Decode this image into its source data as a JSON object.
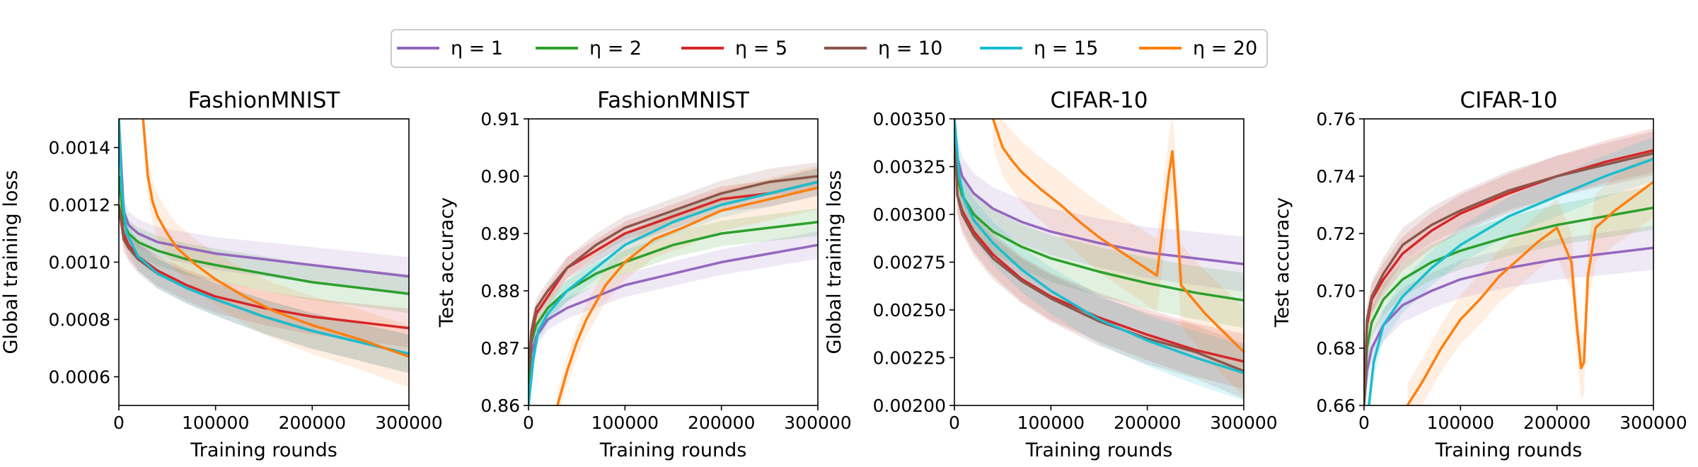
{
  "legend": {
    "entries": [
      {
        "label": "η = 1",
        "color": "#9467bd"
      },
      {
        "label": "η = 2",
        "color": "#2ca02c"
      },
      {
        "label": "η = 5",
        "color": "#d62728"
      },
      {
        "label": "η = 10",
        "color": "#8c564b"
      },
      {
        "label": "η = 15",
        "color": "#17becf"
      },
      {
        "label": "η = 20",
        "color": "#ff7f0e"
      }
    ]
  },
  "chart_data": [
    {
      "type": "line",
      "title": "FashionMNIST",
      "xlabel": "Training rounds",
      "ylabel": "Global training loss",
      "xlim": [
        0,
        300000
      ],
      "ylim": [
        0.0005,
        0.0015
      ],
      "xticks": [
        0,
        100000,
        200000,
        300000
      ],
      "xtick_labels": [
        "0",
        "100000",
        "200000",
        "300000"
      ],
      "yticks": [
        0.0006,
        0.0008,
        0.001,
        0.0012,
        0.0014
      ],
      "ytick_labels": [
        "0.0006",
        "0.0008",
        "0.0010",
        "0.0012",
        "0.0014"
      ],
      "series": [
        {
          "name": "η = 1",
          "x": [
            0,
            5000,
            10000,
            20000,
            40000,
            70000,
            100000,
            150000,
            200000,
            250000,
            300000
          ],
          "y": [
            0.0015,
            0.00118,
            0.00113,
            0.0011,
            0.00107,
            0.00105,
            0.00103,
            0.00101,
            0.00099,
            0.00097,
            0.00095
          ]
        },
        {
          "name": "η = 2",
          "x": [
            0,
            5000,
            10000,
            20000,
            40000,
            70000,
            100000,
            150000,
            200000,
            250000,
            300000
          ],
          "y": [
            0.0013,
            0.00114,
            0.0011,
            0.00107,
            0.00104,
            0.00101,
            0.00099,
            0.00096,
            0.00093,
            0.00091,
            0.00089
          ]
        },
        {
          "name": "η = 5",
          "x": [
            0,
            5000,
            10000,
            20000,
            40000,
            70000,
            100000,
            150000,
            200000,
            250000,
            300000
          ],
          "y": [
            0.0012,
            0.0011,
            0.00106,
            0.00102,
            0.00097,
            0.00092,
            0.00088,
            0.00084,
            0.00081,
            0.00079,
            0.00077
          ]
        },
        {
          "name": "η = 10",
          "x": [
            0,
            5000,
            10000,
            20000,
            40000,
            70000,
            100000,
            150000,
            200000,
            250000,
            300000
          ],
          "y": [
            0.0012,
            0.00108,
            0.00105,
            0.00101,
            0.00096,
            0.00091,
            0.00087,
            0.00081,
            0.00076,
            0.00072,
            0.00068
          ]
        },
        {
          "name": "η = 15",
          "x": [
            0,
            3000,
            8000,
            20000,
            40000,
            70000,
            100000,
            150000,
            200000,
            250000,
            300000
          ],
          "y": [
            0.0015,
            0.00125,
            0.0011,
            0.00102,
            0.00096,
            0.00091,
            0.00087,
            0.00081,
            0.00076,
            0.00072,
            0.00068
          ]
        },
        {
          "name": "η = 20",
          "x": [
            25000,
            30000,
            35000,
            40000,
            50000,
            60000,
            80000,
            100000,
            130000,
            160000,
            200000,
            250000,
            300000
          ],
          "y": [
            0.0015,
            0.0013,
            0.00121,
            0.00116,
            0.0011,
            0.00105,
            0.00099,
            0.00094,
            0.00088,
            0.00083,
            0.00078,
            0.00073,
            0.00067
          ]
        }
      ]
    },
    {
      "type": "line",
      "title": "FashionMNIST",
      "xlabel": "Training rounds",
      "ylabel": "Test accuracy",
      "xlim": [
        0,
        300000
      ],
      "ylim": [
        0.86,
        0.91
      ],
      "xticks": [
        0,
        100000,
        200000,
        300000
      ],
      "xtick_labels": [
        "0",
        "100000",
        "200000",
        "300000"
      ],
      "yticks": [
        0.86,
        0.87,
        0.88,
        0.89,
        0.9,
        0.91
      ],
      "ytick_labels": [
        "0.86",
        "0.87",
        "0.88",
        "0.89",
        "0.90",
        "0.91"
      ],
      "series": [
        {
          "name": "η = 1",
          "x": [
            0,
            3000,
            8000,
            20000,
            40000,
            70000,
            100000,
            150000,
            200000,
            250000,
            300000
          ],
          "y": [
            0.862,
            0.869,
            0.872,
            0.875,
            0.877,
            0.879,
            0.881,
            0.883,
            0.885,
            0.8865,
            0.888
          ]
        },
        {
          "name": "η = 2",
          "x": [
            0,
            3000,
            8000,
            20000,
            40000,
            70000,
            100000,
            150000,
            200000,
            250000,
            300000
          ],
          "y": [
            0.864,
            0.871,
            0.874,
            0.877,
            0.88,
            0.883,
            0.885,
            0.888,
            0.89,
            0.891,
            0.892
          ]
        },
        {
          "name": "η = 5",
          "x": [
            0,
            3000,
            8000,
            20000,
            40000,
            70000,
            100000,
            150000,
            200000,
            250000,
            300000
          ],
          "y": [
            0.866,
            0.872,
            0.876,
            0.879,
            0.884,
            0.887,
            0.89,
            0.893,
            0.896,
            0.897,
            0.899
          ]
        },
        {
          "name": "η = 10",
          "x": [
            0,
            3000,
            8000,
            20000,
            40000,
            70000,
            100000,
            150000,
            200000,
            250000,
            300000
          ],
          "y": [
            0.866,
            0.873,
            0.877,
            0.88,
            0.884,
            0.888,
            0.891,
            0.894,
            0.897,
            0.899,
            0.9
          ]
        },
        {
          "name": "η = 15",
          "x": [
            0,
            5000,
            10000,
            20000,
            40000,
            70000,
            100000,
            150000,
            200000,
            250000,
            300000
          ],
          "y": [
            0.86,
            0.868,
            0.873,
            0.876,
            0.88,
            0.884,
            0.888,
            0.892,
            0.895,
            0.897,
            0.899
          ]
        },
        {
          "name": "η = 20",
          "x": [
            30000,
            40000,
            50000,
            60000,
            80000,
            100000,
            130000,
            160000,
            200000,
            250000,
            300000
          ],
          "y": [
            0.86,
            0.866,
            0.871,
            0.875,
            0.881,
            0.885,
            0.889,
            0.891,
            0.894,
            0.896,
            0.898
          ]
        }
      ]
    },
    {
      "type": "line",
      "title": "CIFAR-10",
      "xlabel": "Training rounds",
      "ylabel": "Global training loss",
      "xlim": [
        0,
        300000
      ],
      "ylim": [
        0.002,
        0.0035
      ],
      "xticks": [
        0,
        100000,
        200000,
        300000
      ],
      "xtick_labels": [
        "0",
        "100000",
        "200000",
        "300000"
      ],
      "yticks": [
        0.002,
        0.00225,
        0.0025,
        0.00275,
        0.003,
        0.00325,
        0.0035
      ],
      "ytick_labels": [
        "0.00200",
        "0.00225",
        "0.00250",
        "0.00275",
        "0.00300",
        "0.00325",
        "0.00350"
      ],
      "series": [
        {
          "name": "η = 1",
          "x": [
            0,
            3000,
            8000,
            20000,
            40000,
            70000,
            100000,
            150000,
            200000,
            250000,
            300000
          ],
          "y": [
            0.0035,
            0.0033,
            0.0032,
            0.00311,
            0.00303,
            0.00296,
            0.00291,
            0.00285,
            0.0028,
            0.00277,
            0.00274
          ]
        },
        {
          "name": "η = 2",
          "x": [
            0,
            3000,
            8000,
            20000,
            40000,
            70000,
            100000,
            150000,
            200000,
            250000,
            300000
          ],
          "y": [
            0.0035,
            0.0032,
            0.0031,
            0.003,
            0.00291,
            0.00283,
            0.00277,
            0.0027,
            0.00264,
            0.00259,
            0.00255
          ]
        },
        {
          "name": "η = 5",
          "x": [
            0,
            3000,
            8000,
            20000,
            40000,
            70000,
            100000,
            150000,
            200000,
            250000,
            300000
          ],
          "y": [
            0.0035,
            0.0031,
            0.00302,
            0.00291,
            0.00279,
            0.00266,
            0.00257,
            0.00246,
            0.00237,
            0.00229,
            0.00223
          ]
        },
        {
          "name": "η = 10",
          "x": [
            0,
            3000,
            8000,
            20000,
            40000,
            70000,
            100000,
            150000,
            200000,
            250000,
            300000
          ],
          "y": [
            0.0035,
            0.0031,
            0.003,
            0.00289,
            0.00277,
            0.00265,
            0.00256,
            0.00244,
            0.00235,
            0.00228,
            0.00218
          ]
        },
        {
          "name": "η = 15",
          "x": [
            0,
            5000,
            10000,
            20000,
            40000,
            70000,
            100000,
            150000,
            200000,
            250000,
            300000
          ],
          "y": [
            0.0035,
            0.0032,
            0.00308,
            0.00297,
            0.00285,
            0.00271,
            0.0026,
            0.00245,
            0.00234,
            0.00225,
            0.00217
          ]
        },
        {
          "name": "η = 20",
          "x": [
            40000,
            50000,
            60000,
            70000,
            90000,
            110000,
            130000,
            150000,
            180000,
            210000,
            222000,
            226000,
            230000,
            235000,
            245000,
            260000,
            280000,
            300000
          ],
          "y": [
            0.0035,
            0.00335,
            0.00328,
            0.00322,
            0.00313,
            0.00305,
            0.00296,
            0.00288,
            0.00278,
            0.00268,
            0.0032,
            0.00333,
            0.00305,
            0.00263,
            0.00257,
            0.00248,
            0.00238,
            0.00228
          ]
        }
      ]
    },
    {
      "type": "line",
      "title": "CIFAR-10",
      "xlabel": "Training rounds",
      "ylabel": "Test accuracy",
      "xlim": [
        0,
        300000
      ],
      "ylim": [
        0.66,
        0.76
      ],
      "xticks": [
        0,
        100000,
        200000,
        300000
      ],
      "xtick_labels": [
        "0",
        "100000",
        "200000",
        "300000"
      ],
      "yticks": [
        0.66,
        0.68,
        0.7,
        0.72,
        0.74,
        0.76
      ],
      "ytick_labels": [
        "0.66",
        "0.68",
        "0.70",
        "0.72",
        "0.74",
        "0.76"
      ],
      "series": [
        {
          "name": "η = 1",
          "x": [
            0,
            3000,
            8000,
            20000,
            40000,
            70000,
            100000,
            150000,
            200000,
            250000,
            300000
          ],
          "y": [
            0.66,
            0.672,
            0.68,
            0.688,
            0.695,
            0.7,
            0.704,
            0.708,
            0.711,
            0.713,
            0.715
          ]
        },
        {
          "name": "η = 2",
          "x": [
            0,
            3000,
            8000,
            20000,
            40000,
            70000,
            100000,
            150000,
            200000,
            250000,
            300000
          ],
          "y": [
            0.66,
            0.68,
            0.689,
            0.697,
            0.704,
            0.71,
            0.714,
            0.719,
            0.723,
            0.726,
            0.729
          ]
        },
        {
          "name": "η = 5",
          "x": [
            0,
            3000,
            8000,
            20000,
            40000,
            70000,
            100000,
            150000,
            200000,
            250000,
            300000
          ],
          "y": [
            0.66,
            0.688,
            0.697,
            0.704,
            0.713,
            0.721,
            0.727,
            0.734,
            0.74,
            0.745,
            0.749
          ]
        },
        {
          "name": "η = 10",
          "x": [
            0,
            3000,
            8000,
            20000,
            40000,
            70000,
            100000,
            150000,
            200000,
            250000,
            300000
          ],
          "y": [
            0.66,
            0.69,
            0.698,
            0.706,
            0.716,
            0.723,
            0.728,
            0.735,
            0.74,
            0.744,
            0.748
          ]
        },
        {
          "name": "η = 15",
          "x": [
            5000,
            10000,
            20000,
            40000,
            70000,
            100000,
            150000,
            200000,
            250000,
            300000
          ],
          "y": [
            0.66,
            0.675,
            0.688,
            0.698,
            0.708,
            0.716,
            0.726,
            0.733,
            0.74,
            0.746
          ]
        },
        {
          "name": "η = 20",
          "x": [
            45000,
            60000,
            80000,
            100000,
            120000,
            140000,
            160000,
            180000,
            200000,
            215000,
            220000,
            225000,
            228000,
            232000,
            240000,
            260000,
            280000,
            300000
          ],
          "y": [
            0.66,
            0.668,
            0.68,
            0.69,
            0.697,
            0.705,
            0.711,
            0.717,
            0.722,
            0.71,
            0.69,
            0.673,
            0.675,
            0.705,
            0.722,
            0.728,
            0.733,
            0.738
          ]
        }
      ]
    }
  ]
}
